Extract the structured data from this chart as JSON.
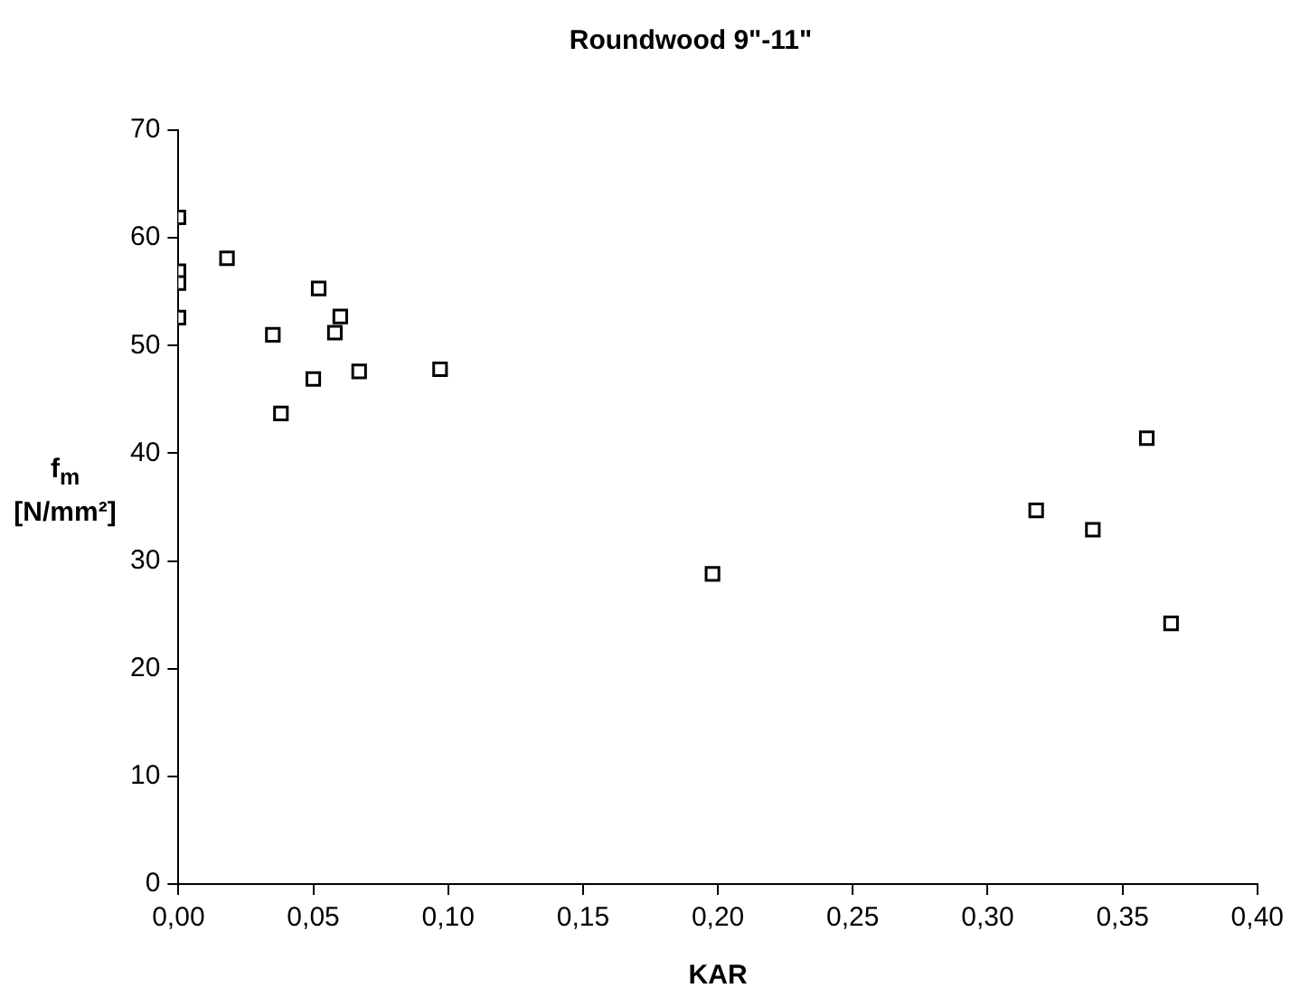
{
  "chart_data": {
    "type": "scatter",
    "title": "Roundwood 9\"-11\"",
    "xlabel": "KAR",
    "ylabel": "f$_{m}$ [N/mm²]",
    "x": [
      0,
      0,
      0,
      0,
      0.018,
      0.035,
      0.038,
      0.05,
      0.052,
      0.058,
      0.06,
      0.067,
      0.097,
      0.198,
      0.318,
      0.339,
      0.359,
      0.368
    ],
    "values": [
      61.9,
      56.9,
      55.8,
      52.6,
      58.1,
      51.0,
      43.7,
      46.9,
      55.3,
      51.2,
      52.7,
      47.6,
      47.8,
      28.8,
      34.7,
      32.9,
      41.4,
      24.2
    ],
    "color": "#000000",
    "marker": "square",
    "grid": false,
    "legend": false,
    "xlim": [
      0,
      0.4
    ],
    "xticks": [
      {
        "value": 0,
        "label": "0,00"
      },
      {
        "value": 0.05,
        "label": "0,05"
      },
      {
        "value": 0.1,
        "label": "0,10"
      },
      {
        "value": 0.15,
        "label": "0,15"
      },
      {
        "value": 0.2,
        "label": "0,20"
      },
      {
        "value": 0.25,
        "label": "0,25"
      },
      {
        "value": 0.3,
        "label": "0,30"
      },
      {
        "value": 0.35,
        "label": "0,35"
      },
      {
        "value": 0.4,
        "label": "0,40"
      }
    ],
    "ylim": [
      0,
      70
    ],
    "yticks": [
      0,
      10,
      20,
      30,
      40,
      50,
      60,
      70
    ]
  }
}
